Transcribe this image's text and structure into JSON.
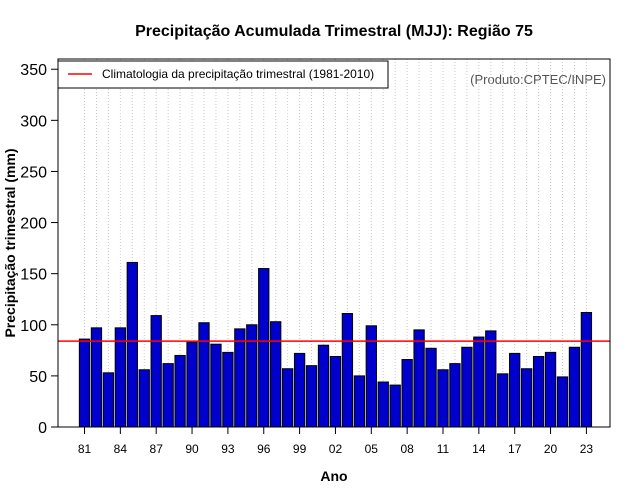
{
  "chart_data": {
    "type": "bar",
    "title": "Precipitação Acumulada Trimestral (MJJ): Região 75",
    "xlabel": "Ano",
    "ylabel": "Precipitação trimestral (mm)",
    "credit": "(Produto:CPTEC/INPE)",
    "ylim": [
      0,
      360
    ],
    "yticks": [
      0,
      50,
      100,
      150,
      200,
      250,
      300,
      350
    ],
    "x": [
      1981,
      1982,
      1983,
      1984,
      1985,
      1986,
      1987,
      1988,
      1989,
      1990,
      1991,
      1992,
      1993,
      1994,
      1995,
      1996,
      1997,
      1998,
      1999,
      2000,
      2001,
      2002,
      2003,
      2004,
      2005,
      2006,
      2007,
      2008,
      2009,
      2010,
      2011,
      2012,
      2013,
      2014,
      2015,
      2016,
      2017,
      2018,
      2019,
      2020,
      2021,
      2022,
      2023
    ],
    "xtick_labels": [
      "81",
      "84",
      "87",
      "90",
      "93",
      "96",
      "99",
      "02",
      "05",
      "08",
      "11",
      "14",
      "17",
      "20",
      "23"
    ],
    "xtick_years": [
      1981,
      1984,
      1987,
      1990,
      1993,
      1996,
      1999,
      2002,
      2005,
      2008,
      2011,
      2014,
      2017,
      2020,
      2023
    ],
    "values": [
      86,
      97,
      53,
      97,
      161,
      56,
      109,
      62,
      70,
      83,
      102,
      81,
      73,
      96,
      100,
      155,
      103,
      57,
      72,
      60,
      80,
      69,
      111,
      50,
      99,
      44,
      41,
      66,
      95,
      77,
      56,
      62,
      78,
      88,
      94,
      52,
      72,
      57,
      69,
      73,
      49,
      78,
      112
    ],
    "climatology": 84,
    "legend": {
      "label": "Climatologia da precipitação trimestral (1981-2010)",
      "placement": "top-left"
    },
    "grid": "vertical-dotted",
    "colors": {
      "bar_fill": "#0000cc",
      "bar_edge": "#000000",
      "climatology_line": "#ff0000",
      "grid": "#c8c8c8"
    }
  }
}
